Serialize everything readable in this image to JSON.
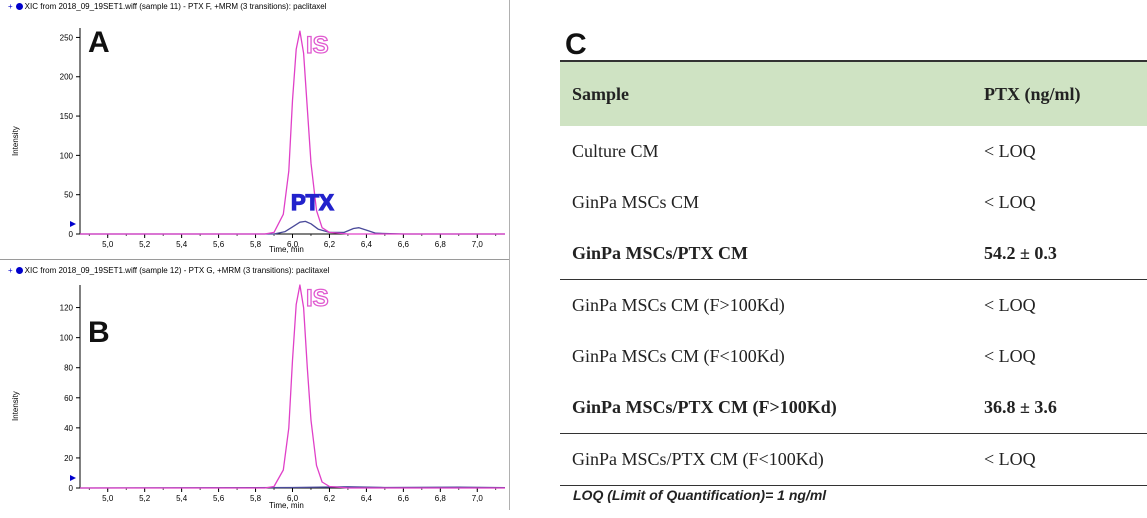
{
  "panel_a": {
    "letter": "A",
    "title": "XIC from 2018_09_19SET1.wiff (sample 11) - PTX F, +MRM (3 transitions): paclitaxel",
    "peak_label_is": "IS",
    "peak_label_ptx": "PTX",
    "ylabel": "Intensity",
    "xlabel": "Time, min"
  },
  "panel_b": {
    "letter": "B",
    "title": "XIC from 2018_09_19SET1.wiff (sample 12) - PTX G, +MRM (3 transitions): paclitaxel",
    "peak_label_is": "IS",
    "ylabel": "Intensity",
    "xlabel": "Time, min"
  },
  "colors": {
    "is_trace": "#e040c8",
    "ptx_trace": "#4a4a9a",
    "ptx_label": "#2222cc",
    "table_header": "#cfe3c3"
  },
  "chart_data": [
    {
      "type": "line",
      "title": "XIC from 2018_09_19SET1.wiff (sample 11) - PTX F, +MRM (3 transitions): paclitaxel",
      "xlabel": "Time, min",
      "ylabel": "Intensity",
      "xlim": [
        4.85,
        7.15
      ],
      "ylim": [
        0,
        262
      ],
      "xticks": [
        "5,0",
        "5,2",
        "5,4",
        "5,6",
        "5,8",
        "6,0",
        "6,2",
        "6,4",
        "6,6",
        "6,8",
        "7,0"
      ],
      "xtick_values": [
        5.0,
        5.2,
        5.4,
        5.6,
        5.8,
        6.0,
        6.2,
        6.4,
        6.6,
        6.8,
        7.0
      ],
      "yticks": [
        "0",
        "50",
        "100",
        "150",
        "200",
        "250"
      ],
      "ytick_values": [
        0,
        50,
        100,
        150,
        200,
        250
      ],
      "series": [
        {
          "name": "IS",
          "color": "#e040c8",
          "x": [
            4.85,
            5.5,
            5.85,
            5.9,
            5.95,
            5.98,
            6.0,
            6.02,
            6.04,
            6.06,
            6.08,
            6.1,
            6.13,
            6.16,
            6.2,
            6.3,
            7.15
          ],
          "y": [
            0,
            0,
            0,
            2,
            25,
            80,
            170,
            235,
            258,
            230,
            160,
            90,
            30,
            8,
            2,
            0,
            0
          ]
        },
        {
          "name": "PTX",
          "color": "#4a4a9a",
          "x": [
            4.85,
            5.9,
            5.96,
            6.0,
            6.04,
            6.07,
            6.1,
            6.14,
            6.2,
            6.28,
            6.33,
            6.36,
            6.4,
            6.45,
            6.6,
            7.15
          ],
          "y": [
            0,
            0,
            3,
            9,
            15,
            16,
            13,
            6,
            2,
            2,
            7,
            8,
            5,
            1,
            0,
            0
          ]
        }
      ]
    },
    {
      "type": "line",
      "title": "XIC from 2018_09_19SET1.wiff (sample 12) - PTX G, +MRM (3 transitions): paclitaxel",
      "xlabel": "Time, min",
      "ylabel": "Intensity",
      "xlim": [
        4.85,
        7.15
      ],
      "ylim": [
        0,
        135
      ],
      "xticks": [
        "5,0",
        "5,2",
        "5,4",
        "5,6",
        "5,8",
        "6,0",
        "6,2",
        "6,4",
        "6,6",
        "6,8",
        "7,0"
      ],
      "xtick_values": [
        5.0,
        5.2,
        5.4,
        5.6,
        5.8,
        6.0,
        6.2,
        6.4,
        6.6,
        6.8,
        7.0
      ],
      "yticks": [
        "0",
        "20",
        "40",
        "60",
        "80",
        "100",
        "120"
      ],
      "ytick_values": [
        0,
        20,
        40,
        60,
        80,
        100,
        120
      ],
      "series": [
        {
          "name": "IS",
          "color": "#e040c8",
          "x": [
            4.85,
            5.5,
            5.85,
            5.9,
            5.95,
            5.98,
            6.0,
            6.02,
            6.04,
            6.06,
            6.08,
            6.1,
            6.13,
            6.16,
            6.2,
            6.3,
            7.15
          ],
          "y": [
            0,
            0,
            0,
            1,
            12,
            40,
            85,
            122,
            135,
            120,
            80,
            45,
            15,
            4,
            1,
            0,
            0
          ]
        },
        {
          "name": "PTX",
          "color": "#4a4a9a",
          "x": [
            4.85,
            6.0,
            6.3,
            6.5,
            6.9,
            7.15
          ],
          "y": [
            0,
            0.3,
            0.8,
            0.3,
            0.6,
            0.2
          ]
        }
      ]
    },
    {
      "type": "table",
      "letter": "C",
      "columns": [
        "Sample",
        "PTX (ng/ml)"
      ],
      "rows": [
        {
          "sample": "Culture CM",
          "ptx": "< LOQ",
          "bold": false
        },
        {
          "sample": "GinPa MSCs CM",
          "ptx": "< LOQ",
          "bold": false
        },
        {
          "sample": "GinPa MSCs/PTX CM",
          "ptx": "54.2 ± 0.3",
          "bold": true
        },
        {
          "sample": "GinPa MSCs CM (F>100Kd)",
          "ptx": "< LOQ",
          "bold": false
        },
        {
          "sample": "GinPa MSCs CM (F<100Kd)",
          "ptx": "< LOQ",
          "bold": false
        },
        {
          "sample": "GinPa MSCs/PTX CM (F>100Kd)",
          "ptx": "36.8 ± 3.6",
          "bold": true
        },
        {
          "sample": "GinPa MSCs/PTX CM (F<100Kd)",
          "ptx": "< LOQ",
          "bold": false
        }
      ],
      "footnote": "LOQ (Limit of Quantification)= 1 ng/ml"
    }
  ]
}
